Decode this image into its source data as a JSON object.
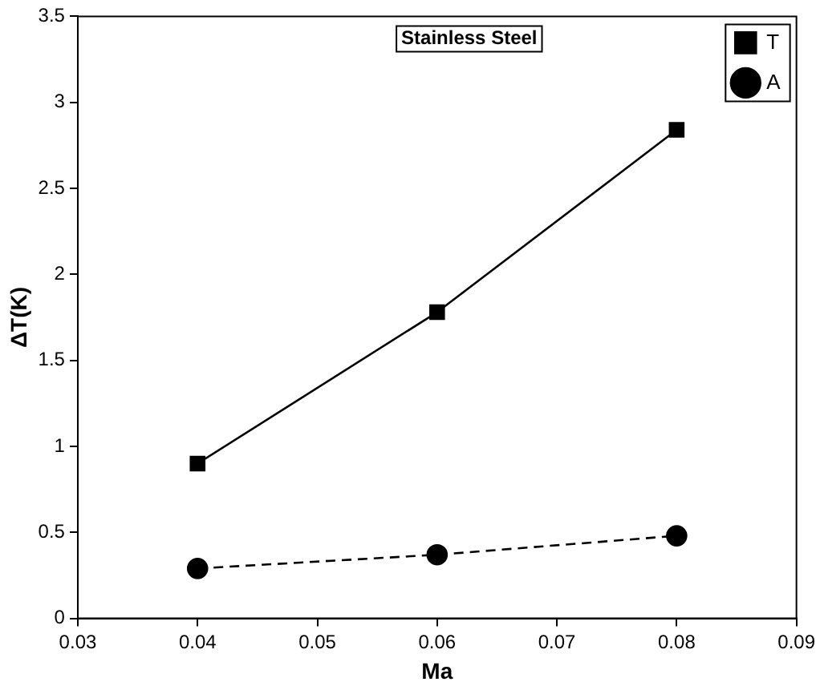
{
  "chart_data": {
    "type": "line",
    "annotations": [
      "Stainless Steel"
    ],
    "xlabel": "Ma",
    "ylabel": "ΔT(K)",
    "x": [
      0.04,
      0.06,
      0.08
    ],
    "series": [
      {
        "name": "T",
        "color": "#000000",
        "values": [
          0.9,
          1.78,
          2.84
        ],
        "marker": "square",
        "line_style": "solid"
      },
      {
        "name": "A",
        "color": "#000000",
        "values": [
          0.29,
          0.37,
          0.48
        ],
        "marker": "circle",
        "line_style": "dashed"
      }
    ],
    "xlim": [
      0.03,
      0.09
    ],
    "xticks": [
      0.03,
      0.04,
      0.05,
      0.06,
      0.07,
      0.08,
      0.09
    ],
    "ylim": [
      0,
      3.5
    ],
    "yticks": [
      0,
      0.5,
      1,
      1.5,
      2,
      2.5,
      3,
      3.5
    ],
    "grid": false,
    "legend": "top right"
  }
}
